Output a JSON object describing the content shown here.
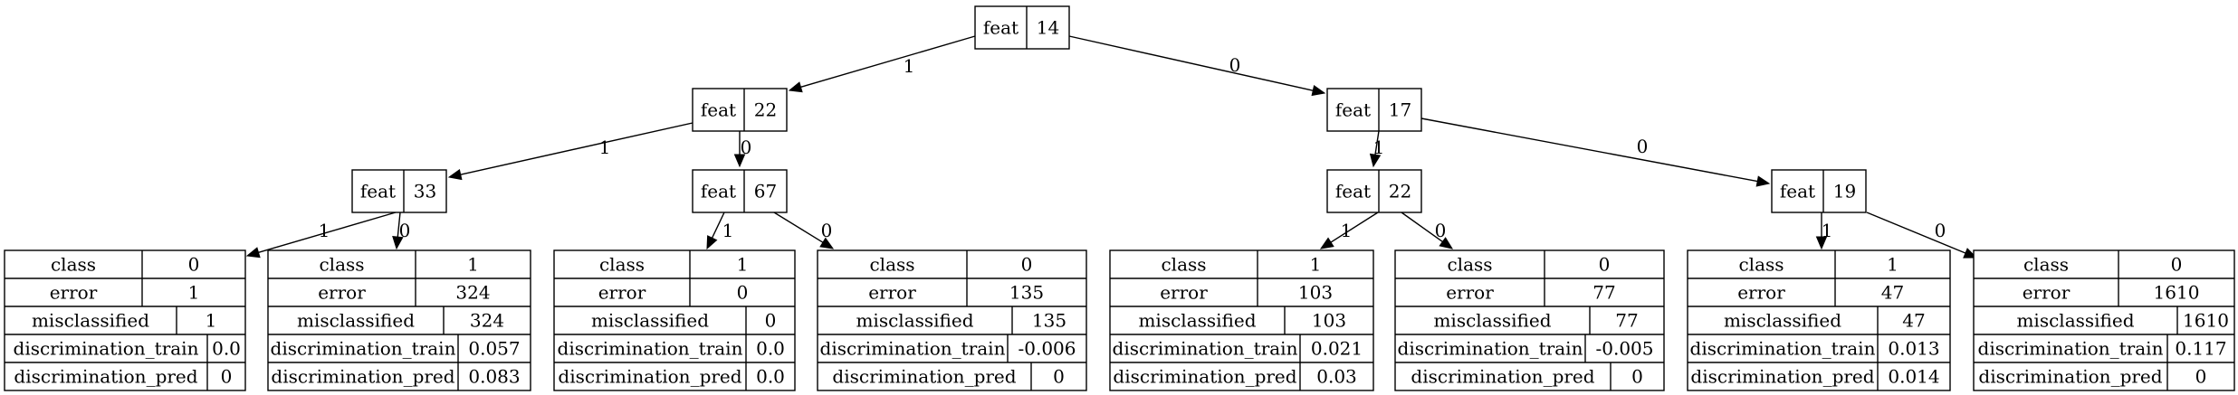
{
  "internal_nodes": [
    {
      "id": "n0",
      "label": "feat",
      "value": "14"
    },
    {
      "id": "n1",
      "label": "feat",
      "value": "22"
    },
    {
      "id": "n2",
      "label": "feat",
      "value": "17"
    },
    {
      "id": "n3",
      "label": "feat",
      "value": "33"
    },
    {
      "id": "n4",
      "label": "feat",
      "value": "67"
    },
    {
      "id": "n5",
      "label": "feat",
      "value": "22"
    },
    {
      "id": "n6",
      "label": "feat",
      "value": "19"
    }
  ],
  "leaf_nodes": [
    {
      "id": "l0",
      "rows": [
        [
          "class",
          "0"
        ],
        [
          "error",
          "1"
        ],
        [
          "misclassified",
          "1"
        ],
        [
          "discrimination_train",
          "0.0"
        ],
        [
          "discrimination_pred",
          "0"
        ]
      ]
    },
    {
      "id": "l1",
      "rows": [
        [
          "class",
          "1"
        ],
        [
          "error",
          "324"
        ],
        [
          "misclassified",
          "324"
        ],
        [
          "discrimination_train",
          "0.057"
        ],
        [
          "discrimination_pred",
          "0.083"
        ]
      ]
    },
    {
      "id": "l2",
      "rows": [
        [
          "class",
          "1"
        ],
        [
          "error",
          "0"
        ],
        [
          "misclassified",
          "0"
        ],
        [
          "discrimination_train",
          "0.0"
        ],
        [
          "discrimination_pred",
          "0.0"
        ]
      ]
    },
    {
      "id": "l3",
      "rows": [
        [
          "class",
          "0"
        ],
        [
          "error",
          "135"
        ],
        [
          "misclassified",
          "135"
        ],
        [
          "discrimination_train",
          "-0.006"
        ],
        [
          "discrimination_pred",
          "0"
        ]
      ]
    },
    {
      "id": "l4",
      "rows": [
        [
          "class",
          "1"
        ],
        [
          "error",
          "103"
        ],
        [
          "misclassified",
          "103"
        ],
        [
          "discrimination_train",
          "0.021"
        ],
        [
          "discrimination_pred",
          "0.03"
        ]
      ]
    },
    {
      "id": "l5",
      "rows": [
        [
          "class",
          "0"
        ],
        [
          "error",
          "77"
        ],
        [
          "misclassified",
          "77"
        ],
        [
          "discrimination_train",
          "-0.005"
        ],
        [
          "discrimination_pred",
          "0"
        ]
      ]
    },
    {
      "id": "l6",
      "rows": [
        [
          "class",
          "1"
        ],
        [
          "error",
          "47"
        ],
        [
          "misclassified",
          "47"
        ],
        [
          "discrimination_train",
          "0.013"
        ],
        [
          "discrimination_pred",
          "0.014"
        ]
      ]
    },
    {
      "id": "l7",
      "rows": [
        [
          "class",
          "0"
        ],
        [
          "error",
          "1610"
        ],
        [
          "misclassified",
          "1610"
        ],
        [
          "discrimination_train",
          "0.117"
        ],
        [
          "discrimination_pred",
          "0"
        ]
      ]
    }
  ],
  "edges": [
    {
      "from": "n0",
      "to": "n1",
      "label": "1"
    },
    {
      "from": "n0",
      "to": "n2",
      "label": "0"
    },
    {
      "from": "n1",
      "to": "n3",
      "label": "1"
    },
    {
      "from": "n1",
      "to": "n4",
      "label": "0"
    },
    {
      "from": "n2",
      "to": "n5",
      "label": "1"
    },
    {
      "from": "n2",
      "to": "n6",
      "label": "0"
    },
    {
      "from": "n3",
      "to": "l0",
      "label": "1"
    },
    {
      "from": "n3",
      "to": "l1",
      "label": "0"
    },
    {
      "from": "n4",
      "to": "l2",
      "label": "1"
    },
    {
      "from": "n4",
      "to": "l3",
      "label": "0"
    },
    {
      "from": "n5",
      "to": "l4",
      "label": "1"
    },
    {
      "from": "n5",
      "to": "l5",
      "label": "0"
    },
    {
      "from": "n6",
      "to": "l6",
      "label": "1"
    },
    {
      "from": "n6",
      "to": "l7",
      "label": "0"
    }
  ]
}
